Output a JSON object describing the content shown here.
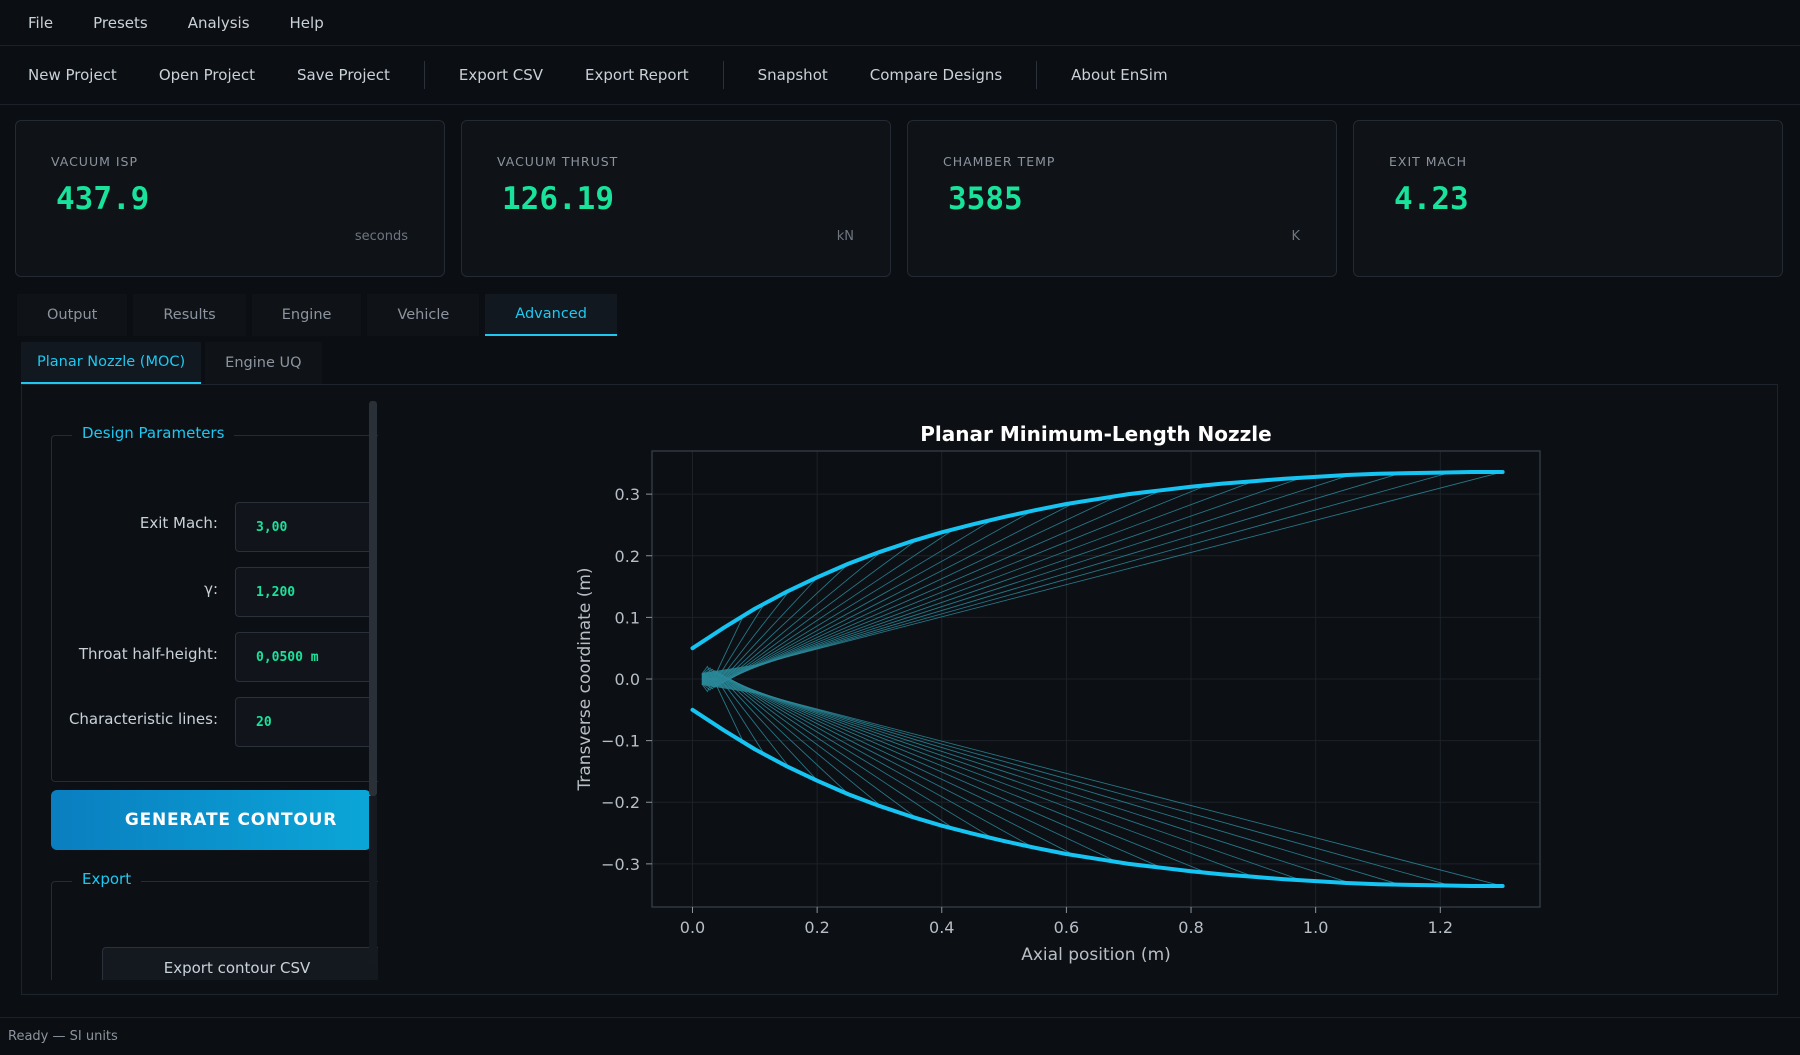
{
  "menu": [
    "File",
    "Presets",
    "Analysis",
    "Help"
  ],
  "toolbar": {
    "new_project": "New Project",
    "open_project": "Open Project",
    "save_project": "Save Project",
    "export_csv": "Export CSV",
    "export_report": "Export Report",
    "snapshot": "Snapshot",
    "compare_designs": "Compare Designs",
    "about": "About EnSim"
  },
  "metrics": [
    {
      "label": "VACUUM ISP",
      "value": "437.9",
      "unit": "seconds"
    },
    {
      "label": "VACUUM THRUST",
      "value": "126.19",
      "unit": "kN"
    },
    {
      "label": "CHAMBER TEMP",
      "value": "3585",
      "unit": "K"
    },
    {
      "label": "EXIT MACH",
      "value": "4.23",
      "unit": ""
    }
  ],
  "tabs": [
    "Output",
    "Results",
    "Engine",
    "Vehicle",
    "Advanced"
  ],
  "active_tab": "Advanced",
  "subtabs": [
    "Planar Nozzle (MOC)",
    "Engine UQ"
  ],
  "active_subtab": "Planar Nozzle (MOC)",
  "design": {
    "title": "Design Parameters",
    "exit_mach_label": "Exit Mach:",
    "exit_mach_value": "3,00",
    "gamma_label": "γ:",
    "gamma_value": "1,200",
    "throat_label": "Throat half-height:",
    "throat_value": "0,0500 m",
    "lines_label": "Characteristic lines:",
    "lines_value": "20"
  },
  "generate_label": "GENERATE CONTOUR",
  "export": {
    "title": "Export",
    "csv_label": "Export contour CSV"
  },
  "status": "Ready — SI units",
  "colors": {
    "accent": "#1ec8f0",
    "value_green": "#19e39a",
    "background": "#0b0e12"
  },
  "chart_data": {
    "type": "line",
    "title": "Planar Minimum-Length Nozzle",
    "xlabel": "Axial position (m)",
    "ylabel": "Transverse coordinate (m)",
    "xlim": [
      -0.065,
      1.36
    ],
    "ylim": [
      -0.37,
      0.37
    ],
    "xticks": [
      0.0,
      0.2,
      0.4,
      0.6,
      0.8,
      1.0,
      1.2
    ],
    "yticks": [
      -0.3,
      -0.2,
      -0.1,
      0.0,
      0.1,
      0.2,
      0.3
    ],
    "grid": true,
    "series": [
      {
        "x": [
          0.0,
          0.05,
          0.1,
          0.15,
          0.2,
          0.25,
          0.3,
          0.35,
          0.4,
          0.45,
          0.5,
          0.55,
          0.6,
          0.65,
          0.7,
          0.75,
          0.8,
          0.85,
          0.9,
          0.95,
          1.0,
          1.05,
          1.1,
          1.15,
          1.2,
          1.25,
          1.3
        ],
        "y": [
          0.05,
          0.083,
          0.114,
          0.141,
          0.165,
          0.187,
          0.206,
          0.223,
          0.238,
          0.251,
          0.263,
          0.274,
          0.284,
          0.292,
          0.3,
          0.306,
          0.312,
          0.317,
          0.321,
          0.325,
          0.328,
          0.331,
          0.333,
          0.334,
          0.335,
          0.336,
          0.336
        ]
      },
      {
        "x": [
          0.0,
          0.05,
          0.1,
          0.15,
          0.2,
          0.25,
          0.3,
          0.35,
          0.4,
          0.45,
          0.5,
          0.55,
          0.6,
          0.65,
          0.7,
          0.75,
          0.8,
          0.85,
          0.9,
          0.95,
          1.0,
          1.05,
          1.1,
          1.15,
          1.2,
          1.25,
          1.3
        ],
        "y": [
          -0.05,
          -0.083,
          -0.114,
          -0.141,
          -0.165,
          -0.187,
          -0.206,
          -0.223,
          -0.238,
          -0.251,
          -0.263,
          -0.274,
          -0.284,
          -0.292,
          -0.3,
          -0.306,
          -0.312,
          -0.317,
          -0.321,
          -0.325,
          -0.328,
          -0.331,
          -0.333,
          -0.334,
          -0.335,
          -0.336,
          -0.336
        ]
      }
    ],
    "characteristic_lines": 20,
    "throat_half_height": 0.05
  }
}
